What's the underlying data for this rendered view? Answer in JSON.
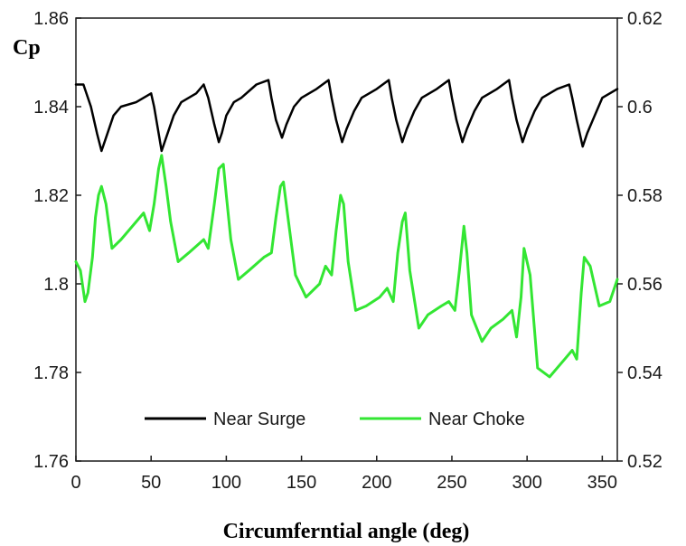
{
  "chart_data": {
    "type": "line",
    "title": "",
    "xlabel": "Circumferntial angle (deg)",
    "ylabel": "Cp",
    "y2label": "",
    "xlim": [
      0,
      360
    ],
    "ylim": [
      1.76,
      1.86
    ],
    "y2lim": [
      0.52,
      0.62
    ],
    "x_ticks": [
      "0",
      "50",
      "100",
      "150",
      "200",
      "250",
      "300",
      "350"
    ],
    "y_ticks": [
      "1.76",
      "1.78",
      "1.8",
      "1.82",
      "1.84",
      "1.86"
    ],
    "y2_ticks": [
      "0.52",
      "0.54",
      "0.56",
      "0.58",
      "0.6",
      "0.62"
    ],
    "grid": false,
    "legend_position": "bottom",
    "series": [
      {
        "name": "Near Surge",
        "axis": "left",
        "color": "#000000",
        "x": [
          0,
          5,
          10,
          14,
          17,
          20,
          25,
          30,
          40,
          50,
          52,
          55,
          57,
          60,
          65,
          70,
          80,
          85,
          88,
          92,
          95,
          97,
          100,
          105,
          110,
          120,
          128,
          130,
          133,
          137,
          140,
          145,
          150,
          160,
          168,
          170,
          173,
          177,
          180,
          185,
          190,
          200,
          208,
          210,
          213,
          217,
          220,
          225,
          230,
          240,
          248,
          250,
          253,
          257,
          260,
          265,
          270,
          280,
          288,
          290,
          293,
          297,
          300,
          305,
          310,
          320,
          328,
          330,
          333,
          337,
          340,
          345,
          350,
          360
        ],
        "y": [
          1.845,
          1.845,
          1.84,
          1.834,
          1.83,
          1.833,
          1.838,
          1.84,
          1.841,
          1.843,
          1.84,
          1.834,
          1.83,
          1.833,
          1.838,
          1.841,
          1.843,
          1.845,
          1.842,
          1.836,
          1.832,
          1.834,
          1.838,
          1.841,
          1.842,
          1.845,
          1.846,
          1.842,
          1.837,
          1.833,
          1.836,
          1.84,
          1.842,
          1.844,
          1.846,
          1.842,
          1.837,
          1.832,
          1.835,
          1.839,
          1.842,
          1.844,
          1.846,
          1.842,
          1.837,
          1.832,
          1.835,
          1.839,
          1.842,
          1.844,
          1.846,
          1.842,
          1.837,
          1.832,
          1.835,
          1.839,
          1.842,
          1.844,
          1.846,
          1.842,
          1.837,
          1.832,
          1.835,
          1.839,
          1.842,
          1.844,
          1.845,
          1.842,
          1.837,
          1.831,
          1.834,
          1.838,
          1.842,
          1.844
        ]
      },
      {
        "name": "Near Choke",
        "axis": "right",
        "color": "#33e633",
        "x": [
          0,
          3,
          6,
          8,
          11,
          13,
          15,
          17,
          20,
          24,
          30,
          40,
          45,
          49,
          52,
          55,
          57,
          60,
          63,
          68,
          75,
          85,
          88,
          92,
          95,
          98,
          100,
          103,
          108,
          115,
          125,
          130,
          133,
          136,
          138,
          141,
          146,
          153,
          162,
          166,
          170,
          173,
          176,
          178,
          181,
          186,
          193,
          202,
          207,
          211,
          214,
          217,
          219,
          222,
          228,
          234,
          243,
          248,
          252,
          255,
          258,
          260,
          263,
          270,
          276,
          284,
          290,
          293,
          296,
          298,
          302,
          307,
          315,
          325,
          330,
          333,
          336,
          338,
          342,
          348,
          355,
          360
        ],
        "y": [
          0.565,
          0.563,
          0.556,
          0.558,
          0.566,
          0.575,
          0.58,
          0.582,
          0.578,
          0.568,
          0.57,
          0.574,
          0.576,
          0.572,
          0.578,
          0.586,
          0.589,
          0.582,
          0.574,
          0.565,
          0.567,
          0.57,
          0.568,
          0.578,
          0.586,
          0.587,
          0.58,
          0.57,
          0.561,
          0.563,
          0.566,
          0.567,
          0.575,
          0.582,
          0.583,
          0.575,
          0.562,
          0.557,
          0.56,
          0.564,
          0.562,
          0.572,
          0.58,
          0.578,
          0.565,
          0.554,
          0.555,
          0.557,
          0.559,
          0.556,
          0.567,
          0.574,
          0.576,
          0.563,
          0.55,
          0.553,
          0.555,
          0.556,
          0.554,
          0.563,
          0.573,
          0.567,
          0.553,
          0.547,
          0.55,
          0.552,
          0.554,
          0.548,
          0.557,
          0.568,
          0.562,
          0.541,
          0.539,
          0.543,
          0.545,
          0.543,
          0.558,
          0.566,
          0.564,
          0.555,
          0.556,
          0.561
        ]
      }
    ]
  }
}
